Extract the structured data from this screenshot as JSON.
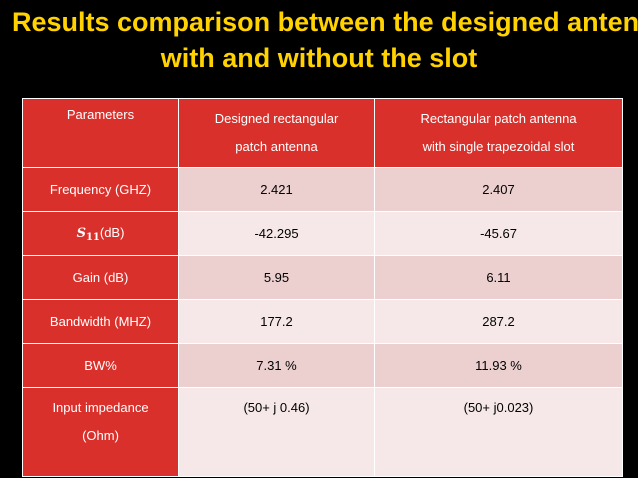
{
  "slide": {
    "title_line1": "Results comparison between the designed antenna",
    "title_line2": "with and without the slot"
  },
  "table": {
    "headers": {
      "col1": "Parameters",
      "col2_line1": "Designed rectangular",
      "col2_line2": "patch antenna",
      "col3_line1": "Rectangular patch antenna",
      "col3_line2": "with single trapezoidal slot"
    },
    "rows": [
      {
        "label": "Frequency (GHZ)",
        "designed": "2.421",
        "slotted": "2.407"
      },
      {
        "label_symbol": "S",
        "label_subscript": "11",
        "label_suffix": "(dB)",
        "designed": "-42.295",
        "slotted": "-45.67"
      },
      {
        "label": "Gain (dB)",
        "designed": "5.95",
        "slotted": "6.11"
      },
      {
        "label": "Bandwidth (MHZ)",
        "designed": "177.2",
        "slotted": "287.2"
      },
      {
        "label": "BW%",
        "designed": "7.31 %",
        "slotted": "11.93 %"
      },
      {
        "label_line1": "Input impedance",
        "label_line2": "(Ohm)",
        "designed": "(50+ j 0.46)",
        "slotted": "(50+ j0.023)"
      }
    ]
  },
  "colors": {
    "background": "#000000",
    "title": "#ffd200",
    "header_fill": "#d9302b",
    "row_fill_odd": "#eccfcf",
    "row_fill_even": "#f6e8e8"
  }
}
